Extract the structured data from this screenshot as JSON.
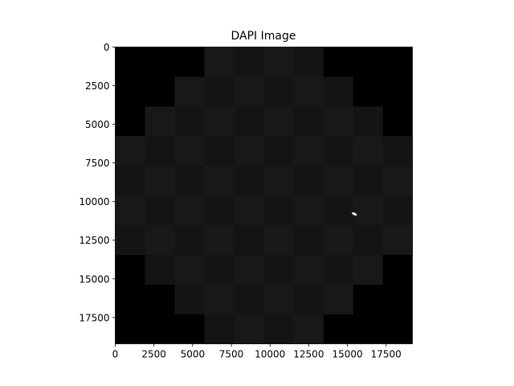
{
  "chart_data": {
    "type": "heatmap",
    "title": "DAPI Image",
    "xlabel": "",
    "ylabel": "",
    "xlim": [
      0,
      19200
    ],
    "ylim": [
      19200,
      0
    ],
    "x_ticks": [
      0,
      2500,
      5000,
      7500,
      10000,
      12500,
      15000,
      17500
    ],
    "y_ticks": [
      0,
      2500,
      5000,
      7500,
      10000,
      12500,
      15000,
      17500
    ],
    "grid": false,
    "legend": "none",
    "colormap": "gray",
    "background_color": "#000000",
    "tile_color": "#141414",
    "tile_color_alt": "#181818",
    "bright_spot_color": "#e8e8e8",
    "tile_grid": {
      "tile_size": 1920,
      "rows": [
        {
          "y": [
            0,
            1920
          ],
          "x": [
            5760,
            13440
          ]
        },
        {
          "y": [
            1920,
            3840
          ],
          "x": [
            3840,
            15360
          ]
        },
        {
          "y": [
            3840,
            5760
          ],
          "x": [
            1920,
            17280
          ]
        },
        {
          "y": [
            5760,
            13440
          ],
          "x": [
            0,
            19200
          ]
        },
        {
          "y": [
            13440,
            15360
          ],
          "x": [
            1920,
            17280
          ]
        },
        {
          "y": [
            15360,
            17280
          ],
          "x": [
            3840,
            15360
          ]
        },
        {
          "y": [
            17280,
            19200
          ],
          "x": [
            5760,
            13440
          ]
        }
      ]
    },
    "bright_spots": [
      {
        "x": 15450,
        "y": 10800
      }
    ]
  }
}
